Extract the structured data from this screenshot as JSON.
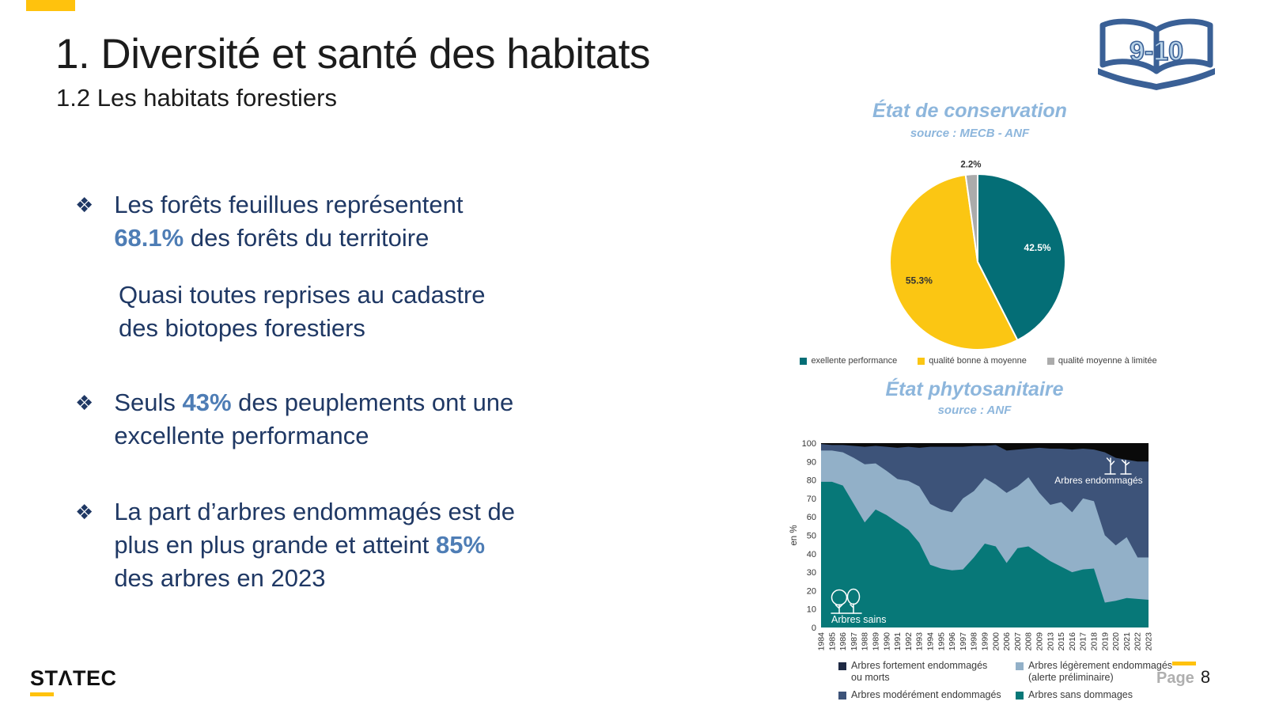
{
  "header": {
    "title": "1. Diversité et santé des habitats",
    "subtitle": "1.2 Les habitats forestiers",
    "badge": "9-10"
  },
  "bullets": [
    {
      "pre": "Les forêts feuillues représentent\n",
      "em": "68.1%",
      "post": " des forêts du territoire"
    },
    {
      "pre": "Seuls ",
      "em": "43%",
      "post": " des peuplements ont une\nexcellente performance"
    },
    {
      "pre": "La part d’arbres endommagés est de\nplus en plus grande et atteint ",
      "em": "85%",
      "post": "\ndes arbres en 2023"
    }
  ],
  "note": {
    "text": "Quasi toutes reprises au cadastre\ndes biotopes forestiers"
  },
  "bullet_glyph": "❖",
  "conservation_chart": {
    "type": "pie",
    "title": "État de conservation",
    "source": "source : MECB - ANF",
    "slices": [
      {
        "label": "exellente performance",
        "value": 42.5,
        "color": "#046E76",
        "text": "42.5%",
        "text_color": "#ffffff",
        "inside": true
      },
      {
        "label": "qualité bonne à moyenne",
        "value": 55.3,
        "color": "#FBC613",
        "text": "55.3%",
        "text_color": "#333333",
        "inside": true
      },
      {
        "label": "qualité moyenne à limitée",
        "value": 2.2,
        "color": "#ABABAB",
        "text": "2.2%",
        "text_color": "#333333",
        "inside": false
      }
    ]
  },
  "phyto_chart": {
    "type": "area",
    "title": "État phytosanitaire",
    "source": "source : ANF",
    "ylabel": "en %",
    "ylim": [
      0,
      100
    ],
    "y_ticks": [
      0,
      10,
      20,
      30,
      40,
      50,
      60,
      70,
      80,
      90,
      100
    ],
    "years": [
      "1984",
      "1985",
      "1986",
      "1987",
      "1988",
      "1989",
      "1990",
      "1991",
      "1992",
      "1993",
      "1994",
      "1995",
      "1996",
      "1997",
      "1998",
      "1999",
      "2000",
      "2006",
      "2007",
      "2008",
      "2009",
      "2013",
      "2015",
      "2016",
      "2017",
      "2018",
      "2019",
      "2020",
      "2021",
      "2022",
      "2023"
    ],
    "series": [
      {
        "name": "Arbres sans dommages",
        "color": "#077878",
        "values": [
          79,
          79,
          77,
          67,
          57,
          64,
          61,
          57,
          53,
          46,
          34,
          32,
          31,
          31.5,
          38,
          45.5,
          44,
          35,
          43,
          44,
          40,
          36,
          33,
          30,
          31.5,
          32,
          13.5,
          14.5,
          16,
          15.5,
          15
        ]
      },
      {
        "name": "Arbres légèrement endommagés (alerte préliminaire)",
        "color": "#92B0C8",
        "values": [
          17,
          17,
          18,
          25,
          31.5,
          25,
          24,
          23.5,
          26.5,
          30.5,
          33,
          32,
          31.5,
          38.5,
          36,
          35.5,
          33.5,
          38,
          33.5,
          37.5,
          33,
          30.5,
          35,
          32.5,
          38.5,
          36.5,
          36.5,
          30,
          33,
          22.5,
          23
        ]
      },
      {
        "name": "Arbres modérément endommagés",
        "color": "#3D5379",
        "values": [
          3.5,
          3,
          4,
          6.5,
          9.5,
          9.5,
          13,
          17,
          18.5,
          21,
          31,
          34,
          35.5,
          28,
          24.5,
          17.5,
          21.5,
          23,
          20,
          15.5,
          24.5,
          30.5,
          29,
          34,
          27,
          28,
          45,
          47.5,
          42,
          52,
          52
        ]
      },
      {
        "name": "Arbres fortement endommagés ou morts",
        "color": "#0A0A0A",
        "values": [
          0.5,
          1,
          1,
          1.5,
          2,
          1.5,
          2,
          2.5,
          2,
          2.5,
          2,
          2,
          2,
          2,
          1.5,
          1.5,
          1,
          4,
          3.5,
          3,
          2.5,
          3,
          3,
          3.5,
          3,
          3.5,
          5,
          8,
          9,
          10,
          10
        ]
      }
    ],
    "annotations": {
      "inside_bottom": "Arbres sains",
      "inside_top": "Arbres endommagés"
    },
    "legend": [
      {
        "label": "Arbres fortement endommagés\nou morts",
        "color": "#1F2A44"
      },
      {
        "label": "Arbres légèrement endommagés\n(alerte préliminaire)",
        "color": "#92B0C8"
      },
      {
        "label": "Arbres modérément endommagés",
        "color": "#3D5379"
      },
      {
        "label": "Arbres sans dommages",
        "color": "#077878"
      }
    ]
  },
  "footer": {
    "logo_text": "STΛTEC",
    "page_label": "Page",
    "page_number": "8"
  }
}
